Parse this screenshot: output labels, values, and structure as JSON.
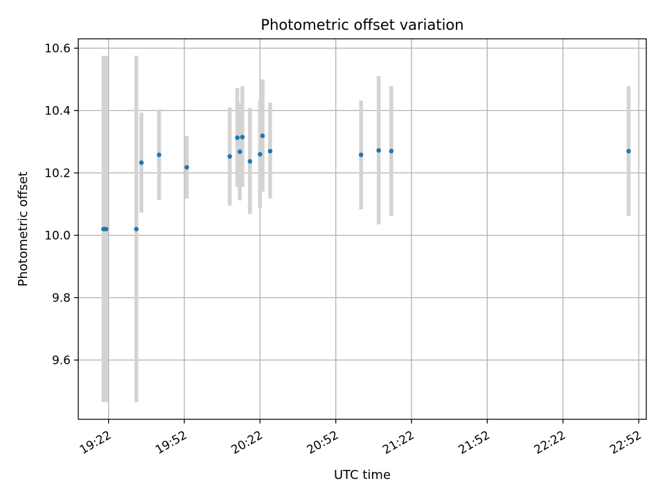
{
  "chart_data": {
    "type": "scatter",
    "title": "Photometric offset variation",
    "xlabel": "UTC time",
    "ylabel": "Photometric offset",
    "grid": true,
    "legend": "none",
    "xlim": [
      "19:10",
      "22:55"
    ],
    "ylim": [
      9.41,
      10.63
    ],
    "x_ticks": [
      "19:22",
      "19:52",
      "20:22",
      "20:52",
      "21:22",
      "21:52",
      "22:22",
      "22:52"
    ],
    "y_ticks": [
      9.6,
      9.8,
      10.0,
      10.2,
      10.4,
      10.6
    ],
    "y_tick_labels": [
      "9.6",
      "9.8",
      "10.0",
      "10.2",
      "10.4",
      "10.6"
    ],
    "colors": {
      "point": "#1f77b4",
      "errorbar": "#d3d3d3",
      "grid": "#b0b0b0"
    },
    "series": [
      {
        "points": [
          {
            "x": "19:20",
            "y": 10.02,
            "ylo": 9.465,
            "yhi": 10.575
          },
          {
            "x": "19:21",
            "y": 10.02,
            "ylo": 9.465,
            "yhi": 10.575
          },
          {
            "x": "19:33",
            "y": 10.02,
            "ylo": 9.465,
            "yhi": 10.575
          },
          {
            "x": "19:35",
            "y": 10.233,
            "ylo": 10.073,
            "yhi": 10.393
          },
          {
            "x": "19:42",
            "y": 10.258,
            "ylo": 10.113,
            "yhi": 10.403
          },
          {
            "x": "19:53",
            "y": 10.218,
            "ylo": 10.118,
            "yhi": 10.318
          },
          {
            "x": "20:10",
            "y": 10.253,
            "ylo": 10.095,
            "yhi": 10.41
          },
          {
            "x": "20:13",
            "y": 10.313,
            "ylo": 10.155,
            "yhi": 10.472
          },
          {
            "x": "20:14",
            "y": 10.268,
            "ylo": 10.112,
            "yhi": 10.425
          },
          {
            "x": "20:15",
            "y": 10.315,
            "ylo": 10.155,
            "yhi": 10.478
          },
          {
            "x": "20:18",
            "y": 10.237,
            "ylo": 10.068,
            "yhi": 10.408
          },
          {
            "x": "20:22",
            "y": 10.26,
            "ylo": 10.087,
            "yhi": 10.432
          },
          {
            "x": "20:23",
            "y": 10.319,
            "ylo": 10.14,
            "yhi": 10.5
          },
          {
            "x": "20:26",
            "y": 10.27,
            "ylo": 10.118,
            "yhi": 10.425
          },
          {
            "x": "21:02",
            "y": 10.258,
            "ylo": 10.083,
            "yhi": 10.432
          },
          {
            "x": "21:09",
            "y": 10.272,
            "ylo": 10.035,
            "yhi": 10.51
          },
          {
            "x": "21:14",
            "y": 10.27,
            "ylo": 10.062,
            "yhi": 10.478
          },
          {
            "x": "22:48",
            "y": 10.27,
            "ylo": 10.062,
            "yhi": 10.478
          }
        ]
      }
    ]
  }
}
